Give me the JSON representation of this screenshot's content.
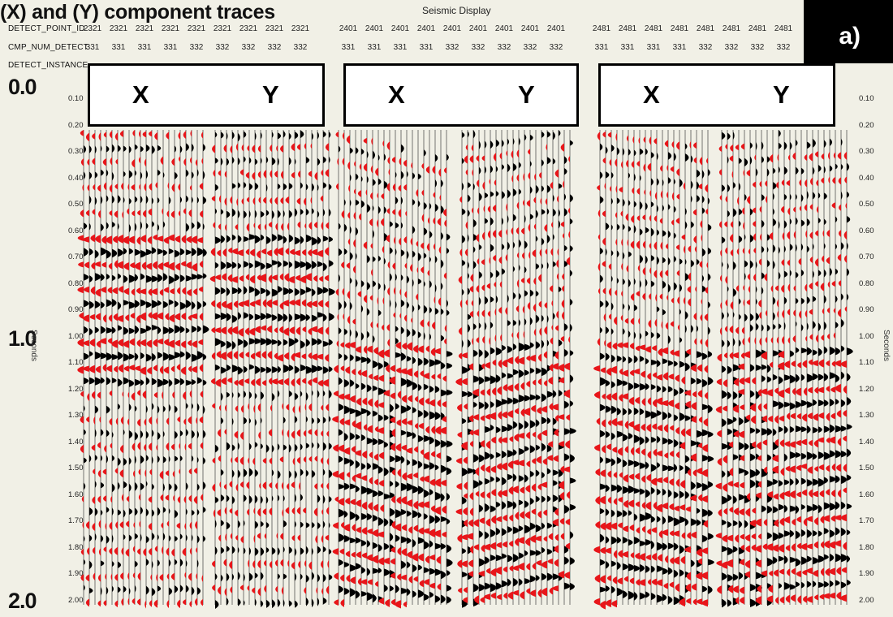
{
  "title": "(X) and (Y) component traces",
  "window_title": "Seismic Display",
  "panel_label": "a)",
  "header_rows": [
    {
      "name": "DETECT_POINT_ID",
      "values": [
        "2321",
        "2321",
        "2321",
        "2321",
        "2321",
        "2321",
        "2321",
        "2321",
        "2321",
        "2401",
        "2401",
        "2401",
        "2401",
        "2401",
        "2401",
        "2401",
        "2401",
        "2401",
        "2481",
        "2481",
        "2481",
        "2481",
        "2481",
        "2481",
        "2481",
        "2481"
      ]
    },
    {
      "name": "CMP_NUM_DETECT",
      "values": [
        "331",
        "331",
        "331",
        "331",
        "332",
        "332",
        "332",
        "332",
        "332",
        "331",
        "331",
        "331",
        "331",
        "332",
        "332",
        "332",
        "332",
        "332",
        "331",
        "331",
        "331",
        "331",
        "332",
        "332",
        "332",
        "332"
      ]
    },
    {
      "name": "DETECT_INSTANCE",
      "values": []
    }
  ],
  "time_axis": {
    "unit_label": "Seconds",
    "big_labels": [
      "0.0",
      "1.0",
      "2.0"
    ],
    "ticks": [
      "0.10",
      "0.20",
      "0.30",
      "0.40",
      "0.50",
      "0.60",
      "0.70",
      "0.80",
      "0.90",
      "1.00",
      "1.10",
      "1.20",
      "1.30",
      "1.40",
      "1.50",
      "1.60",
      "1.70",
      "1.80",
      "1.90",
      "2.00"
    ],
    "right_last_tick": "2.00"
  },
  "panels": [
    {
      "x_label": "X",
      "y_label": "Y"
    },
    {
      "x_label": "X",
      "y_label": "Y"
    },
    {
      "x_label": "X",
      "y_label": "Y"
    }
  ],
  "colors": {
    "positive_fill": "#e8161a",
    "negative_fill": "#000000",
    "background": "#f1f0e6"
  }
}
